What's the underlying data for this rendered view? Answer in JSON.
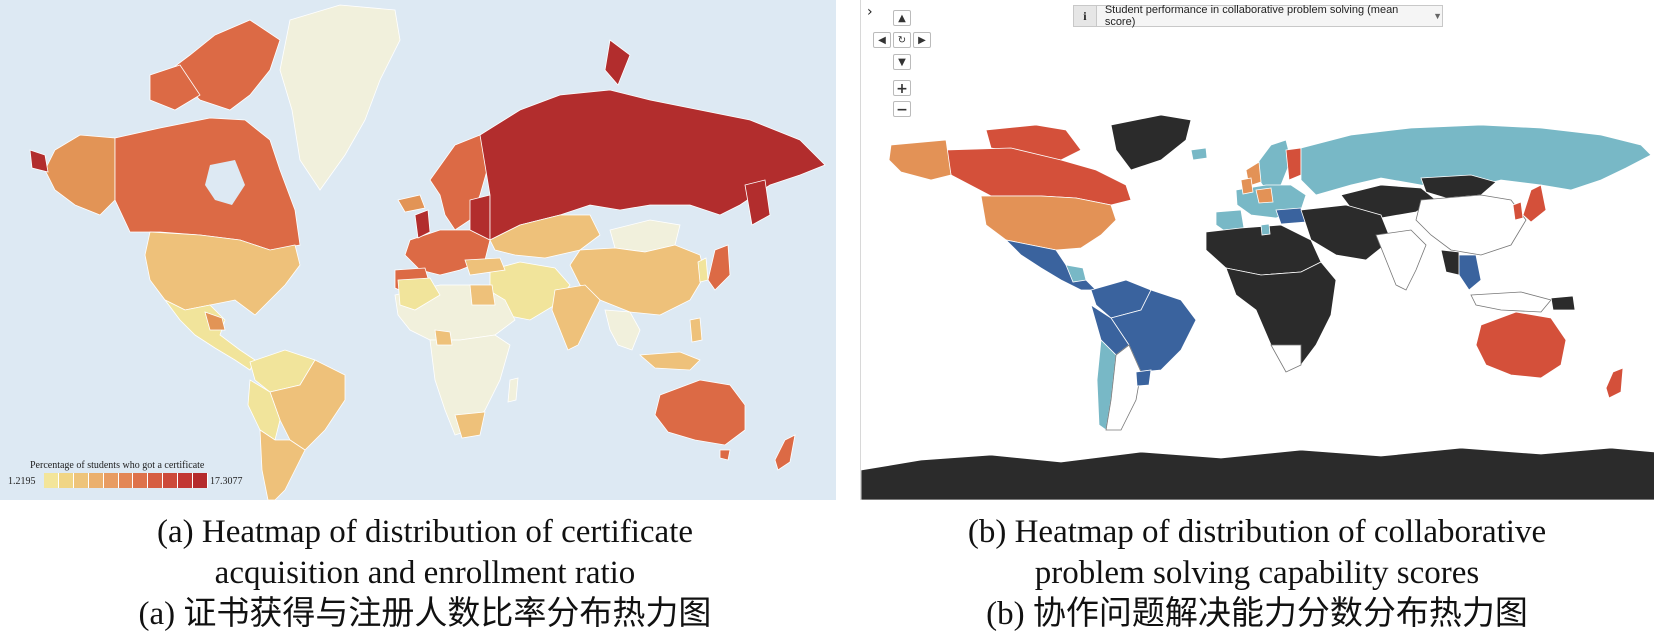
{
  "panel_a": {
    "legend": {
      "title": "Percentage of students who got a certificate",
      "min": "1.2195",
      "max": "17.3077",
      "steps": [
        "#f3e59a",
        "#f0d585",
        "#eec47a",
        "#ebb06d",
        "#e89c62",
        "#e38756",
        "#de724b",
        "#d65e42",
        "#cd4a3a",
        "#c23733",
        "#b52b2d"
      ]
    },
    "colors": {
      "ocean": "#dde9f3",
      "low": "#f1f0dc",
      "pale_yellow": "#f1e49b",
      "light_orange": "#eec17a",
      "orange": "#e29456",
      "red_orange": "#dc6a45",
      "dark_red": "#b22d2d"
    }
  },
  "panel_b": {
    "indicator_label": "Student performance in collaborative problem solving (mean score)",
    "controls": {
      "collapse": "›",
      "up": "▲",
      "down": "▼",
      "left": "◀",
      "right": "▶",
      "reset": "↻",
      "zoom_in": "+",
      "zoom_out": "−"
    },
    "colors": {
      "no_data": "#2b2b2b",
      "light_blue": "#78b8c6",
      "dark_blue": "#3a639e",
      "orange": "#e39256",
      "red": "#d4503a",
      "blank": "#ffffff"
    }
  },
  "captions": {
    "a_line1": "(a) Heatmap of distribution of certificate",
    "a_line2": "acquisition and enrollment ratio",
    "a_line3": "(a) 证书获得与注册人数比率分布热力图",
    "b_line1": "(b) Heatmap of distribution of collaborative",
    "b_line2": "problem solving capability scores",
    "b_line3": "(b) 协作问题解决能力分数分布热力图"
  }
}
